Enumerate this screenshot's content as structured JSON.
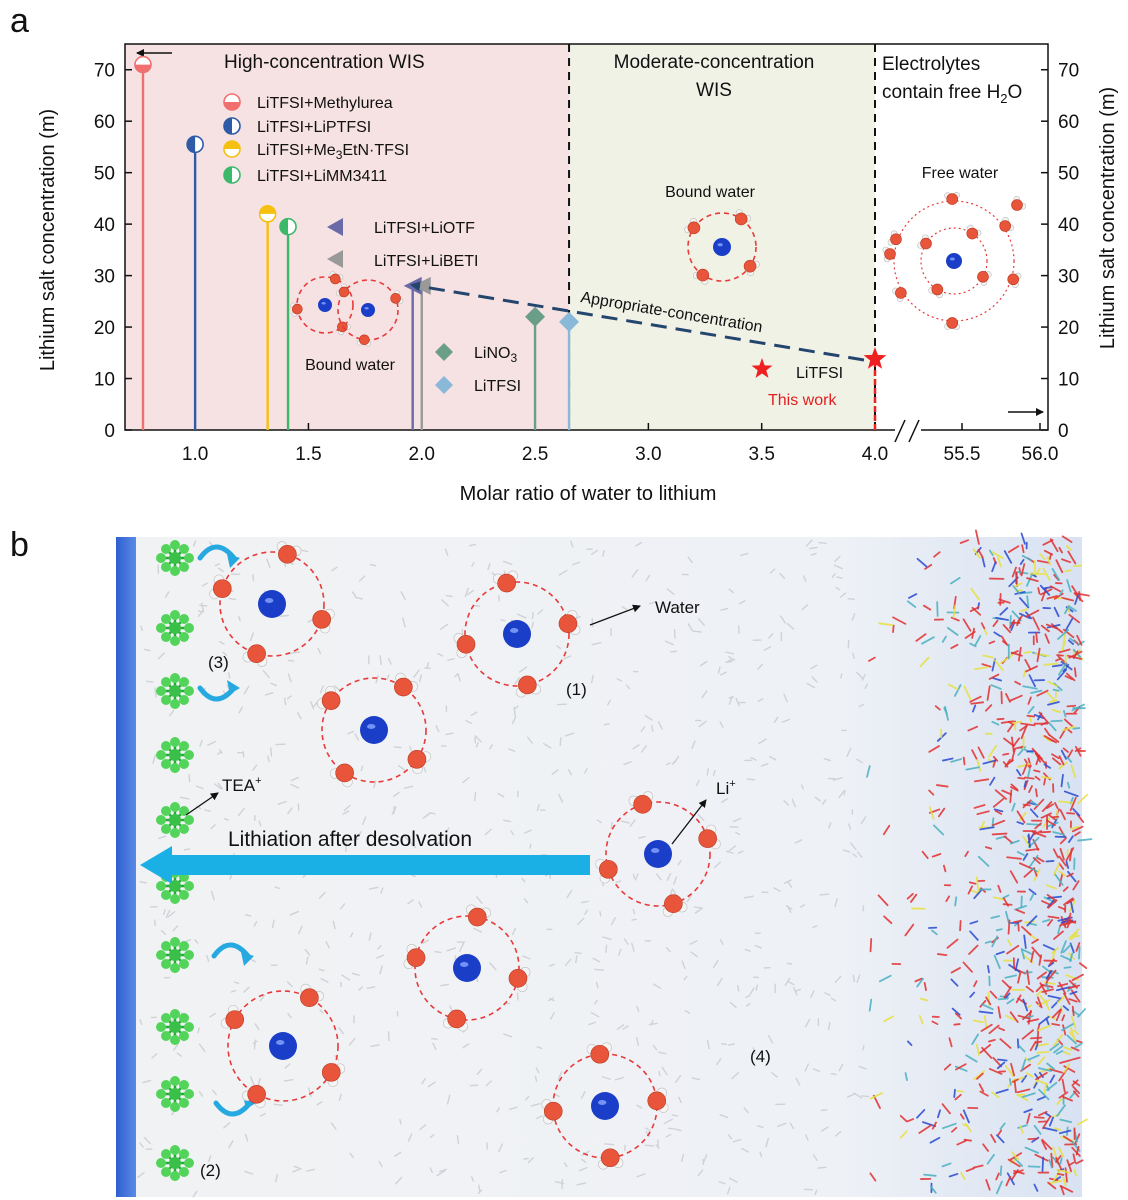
{
  "panel_a": {
    "letter": "a",
    "chart_data": {
      "type": "lollipop",
      "xlabel": "Molar ratio of water to lithium",
      "ylabel_left": "Lithium salt concentration (m)",
      "ylabel_right": "Lithium salt concentration (m)",
      "x_ticks": [
        "1.0",
        "1.5",
        "2.0",
        "2.5",
        "3.0",
        "3.5",
        "4.0",
        "55.5",
        "56.0"
      ],
      "y_ticks": [
        "0",
        "10",
        "20",
        "30",
        "40",
        "50",
        "60",
        "70"
      ],
      "ylim": [
        0,
        75
      ],
      "x_break": [
        4.0,
        55.5
      ],
      "regions": [
        {
          "title": "High-concentration WIS",
          "x_range": [
            0.73,
            2.65
          ],
          "color": "#f6e2e2"
        },
        {
          "title_line1": "Moderate-concentration",
          "title_line2": "WIS",
          "x_range": [
            2.65,
            4.0
          ],
          "color": "#f1f2e6"
        },
        {
          "title_line1": "Electrolytes",
          "title_line2": "contain free H",
          "title_sub": "2",
          "title_tail": "O",
          "x_range": [
            4.0,
            56.1
          ],
          "color": "#ffffff"
        }
      ],
      "series": [
        {
          "name": "LiTFSI+Methylurea",
          "x": 0.77,
          "y": 71,
          "marker": "half-circle",
          "color": "#f07070"
        },
        {
          "name": "LiTFSI+LiPTFSI",
          "x": 1.0,
          "y": 55.5,
          "marker": "half-circle",
          "color": "#2f5aa8"
        },
        {
          "name_pre": "LiTFSI+Me",
          "name_sub": "3",
          "name_post": "EtN·TFSI",
          "x": 1.32,
          "y": 42,
          "marker": "half-circle",
          "color": "#f5c010"
        },
        {
          "name": "LiTFSI+LiMM3411",
          "x": 1.41,
          "y": 39.5,
          "marker": "half-circle",
          "color": "#3cb86a"
        },
        {
          "name": "LiTFSI+LiOTF",
          "x": 1.96,
          "y": 28,
          "marker": "triangle",
          "color": "#6a6aa8"
        },
        {
          "name": "LiTFSI+LiBETI",
          "x": 2.0,
          "y": 28,
          "marker": "triangle",
          "color": "#999999"
        },
        {
          "name_pre": "LiNO",
          "name_sub": "3",
          "x": 2.5,
          "y": 22,
          "marker": "diamond",
          "color": "#6a9e88"
        },
        {
          "name": "LiTFSI",
          "x": 2.65,
          "y": 21,
          "marker": "diamond",
          "color": "#8ab8d8"
        },
        {
          "name": "LiTFSI",
          "x": 4.0,
          "y": 13.8,
          "marker": "star",
          "color": "#ee2020"
        }
      ],
      "annotations": {
        "bound_water_left": "Bound water",
        "bound_water_mid": "Bound water",
        "free_water": "Free water",
        "arrow_label": "Appropriate-concentration",
        "this_work": "This work",
        "star_label": "LiTFSI"
      }
    }
  },
  "panel_b": {
    "letter": "b",
    "labels": {
      "water": "Water",
      "li": "Li",
      "li_sup": "+",
      "tea": "TEA",
      "tea_sup": "+",
      "lithiation": "Lithiation after desolvation",
      "n1": "(1)",
      "n2": "(2)",
      "n3": "(3)",
      "n4": "(4)"
    }
  }
}
